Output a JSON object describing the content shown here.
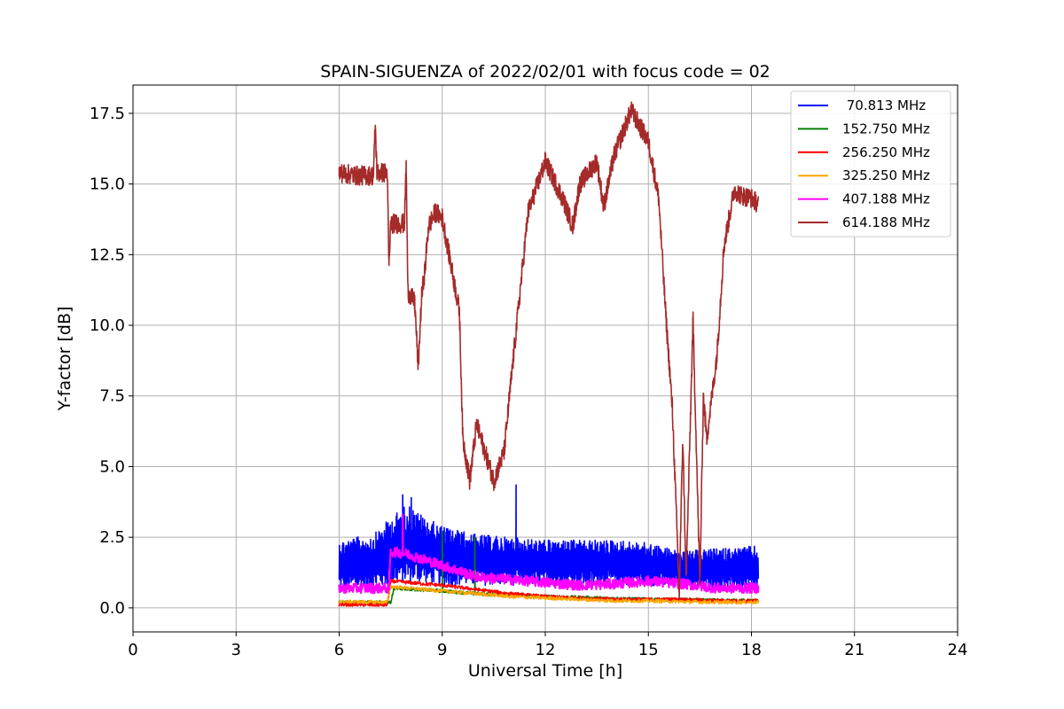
{
  "chart_data": {
    "type": "line",
    "title": "SPAIN-SIGUENZA of 2022/02/01 with focus code = 02",
    "xlabel": "Universal Time [h]",
    "ylabel": "Y-factor [dB]",
    "xlim": [
      0,
      24
    ],
    "ylim": [
      -0.85,
      18.5
    ],
    "x_ticks": [
      0,
      3,
      6,
      9,
      12,
      15,
      18,
      21,
      24
    ],
    "x_tick_labels": [
      "0",
      "3",
      "6",
      "9",
      "12",
      "15",
      "18",
      "21",
      "24"
    ],
    "y_ticks": [
      0.0,
      2.5,
      5.0,
      7.5,
      10.0,
      12.5,
      15.0,
      17.5
    ],
    "y_tick_labels": [
      "0.0",
      "2.5",
      "5.0",
      "7.5",
      "10.0",
      "12.5",
      "15.0",
      "17.5"
    ],
    "grid": true,
    "legend_position": "top-right",
    "series": [
      {
        "name": " 70.813 MHz",
        "color": "#0000ff",
        "band": {
          "x": [
            6.0,
            7.0,
            7.5,
            8.0,
            8.5,
            9.0,
            10.0,
            11.0,
            12.0,
            13.0,
            14.0,
            15.0,
            16.0,
            17.0,
            18.2
          ],
          "low": [
            0.6,
            0.7,
            0.8,
            0.9,
            0.9,
            0.8,
            0.8,
            0.8,
            0.8,
            0.8,
            0.8,
            0.8,
            0.7,
            0.6,
            0.6
          ],
          "high": [
            2.4,
            2.6,
            3.2,
            3.7,
            3.2,
            2.9,
            2.6,
            2.5,
            2.4,
            2.4,
            2.4,
            2.3,
            2.0,
            2.1,
            2.2
          ]
        },
        "spikes": [
          [
            7.85,
            4.0
          ],
          [
            11.15,
            4.35
          ],
          [
            8.1,
            3.9
          ],
          [
            9.6,
            2.6
          ]
        ]
      },
      {
        "name": "152.750 MHz",
        "color": "#008000",
        "x": [
          6.0,
          7.5,
          7.6,
          9.0,
          10.0,
          12.0,
          15.0,
          18.2
        ],
        "y": [
          0.2,
          0.2,
          0.7,
          0.6,
          0.5,
          0.4,
          0.3,
          0.25
        ],
        "spikes": [
          [
            9.0,
            2.7
          ],
          [
            9.95,
            2.5
          ]
        ]
      },
      {
        "name": "256.250 MHz",
        "color": "#ff0000",
        "x": [
          6.0,
          7.4,
          7.5,
          8.0,
          9.0,
          10.0,
          11.0,
          12.0,
          13.0,
          14.0,
          15.0,
          16.0,
          17.0,
          18.2
        ],
        "y": [
          0.12,
          0.1,
          0.95,
          0.9,
          0.8,
          0.65,
          0.5,
          0.4,
          0.35,
          0.3,
          0.3,
          0.3,
          0.25,
          0.25
        ]
      },
      {
        "name": "325.250 MHz",
        "color": "#ffa500",
        "x": [
          6.0,
          7.4,
          7.5,
          8.0,
          9.0,
          10.0,
          11.0,
          12.0,
          13.0,
          14.0,
          15.0,
          16.0,
          17.0,
          18.2
        ],
        "y": [
          0.22,
          0.2,
          0.75,
          0.7,
          0.6,
          0.5,
          0.4,
          0.35,
          0.3,
          0.25,
          0.25,
          0.22,
          0.2,
          0.2
        ]
      },
      {
        "name": "407.188 MHz",
        "color": "#ff00ff",
        "x": [
          6.0,
          7.0,
          7.45,
          7.5,
          8.0,
          8.5,
          9.0,
          9.5,
          10.0,
          11.0,
          12.0,
          13.0,
          14.0,
          15.0,
          16.0,
          17.0,
          18.2
        ],
        "y": [
          0.7,
          0.7,
          0.7,
          2.0,
          1.9,
          1.7,
          1.5,
          1.3,
          1.1,
          1.0,
          0.9,
          0.8,
          0.85,
          0.95,
          0.85,
          0.7,
          0.7
        ],
        "spikes": [
          [
            7.85,
            3.3
          ]
        ]
      },
      {
        "name": "614.188 MHz",
        "color": "#a52a2a",
        "x": [
          6.0,
          6.5,
          7.0,
          7.05,
          7.1,
          7.4,
          7.45,
          7.5,
          7.9,
          7.95,
          8.0,
          8.2,
          8.3,
          8.4,
          8.5,
          8.6,
          8.8,
          9.0,
          9.2,
          9.5,
          9.6,
          9.8,
          10.0,
          10.5,
          10.8,
          11.0,
          11.5,
          12.0,
          12.5,
          12.8,
          13.0,
          13.5,
          13.7,
          14.0,
          14.5,
          15.0,
          15.3,
          15.5,
          15.7,
          15.9,
          16.0,
          16.1,
          16.3,
          16.5,
          16.6,
          16.7,
          17.0,
          17.2,
          17.5,
          17.7,
          18.0,
          18.2
        ],
        "y": [
          15.4,
          15.3,
          15.3,
          17.1,
          15.4,
          15.4,
          12.0,
          13.6,
          13.6,
          15.7,
          11.2,
          10.8,
          8.5,
          11.0,
          12.0,
          13.5,
          14.0,
          13.8,
          12.5,
          10.5,
          6.0,
          4.5,
          6.5,
          4.5,
          5.5,
          8.0,
          14.0,
          15.8,
          14.5,
          13.5,
          15.0,
          15.8,
          14.2,
          16.0,
          17.6,
          16.5,
          14.5,
          10.5,
          7.0,
          0.5,
          6.0,
          1.0,
          10.2,
          0.8,
          7.5,
          6.0,
          9.0,
          12.8,
          14.8,
          14.6,
          14.5,
          14.3
        ]
      }
    ]
  }
}
